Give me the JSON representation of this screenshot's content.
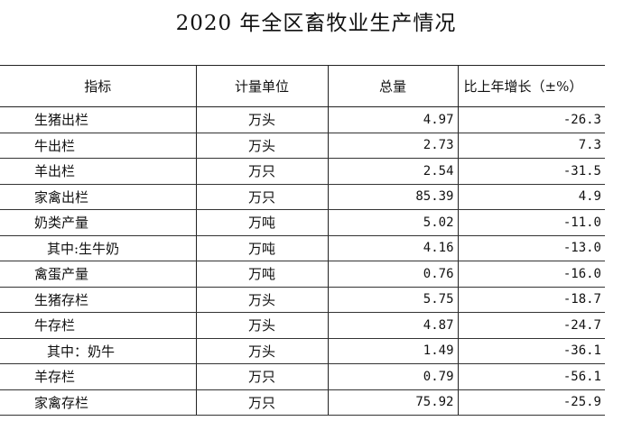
{
  "title": "2020 年全区畜牧业生产情况",
  "table": {
    "headers": [
      "指标",
      "计量单位",
      "总量",
      "比上年增长（±%）"
    ],
    "rows": [
      {
        "name": "生猪出栏",
        "unit": "万头",
        "total": "4.97",
        "growth": "-26.3"
      },
      {
        "name": "牛出栏",
        "unit": "万头",
        "total": "2.73",
        "growth": "7.3"
      },
      {
        "name": "羊出栏",
        "unit": "万只",
        "total": "2.54",
        "growth": "-31.5"
      },
      {
        "name": "家禽出栏",
        "unit": "万只",
        "total": "85.39",
        "growth": "4.9"
      },
      {
        "name": "奶类产量",
        "unit": "万吨",
        "total": "5.02",
        "growth": "-11.0"
      },
      {
        "name": "其中:生牛奶",
        "unit": "万吨",
        "total": "4.16",
        "growth": "-13.0",
        "sub": true
      },
      {
        "name": "禽蛋产量",
        "unit": "万吨",
        "total": "0.76",
        "growth": "-16.0"
      },
      {
        "name": "生猪存栏",
        "unit": "万头",
        "total": "5.75",
        "growth": "-18.7"
      },
      {
        "name": "牛存栏",
        "unit": "万头",
        "total": "4.87",
        "growth": "-24.7"
      },
      {
        "name": "其中：奶牛",
        "unit": "万头",
        "total": "1.49",
        "growth": "-36.1",
        "sub": true
      },
      {
        "name": "羊存栏",
        "unit": "万只",
        "total": "0.79",
        "growth": "-56.1"
      },
      {
        "name": "家禽存栏",
        "unit": "万只",
        "total": "75.92",
        "growth": "-25.9"
      }
    ]
  }
}
